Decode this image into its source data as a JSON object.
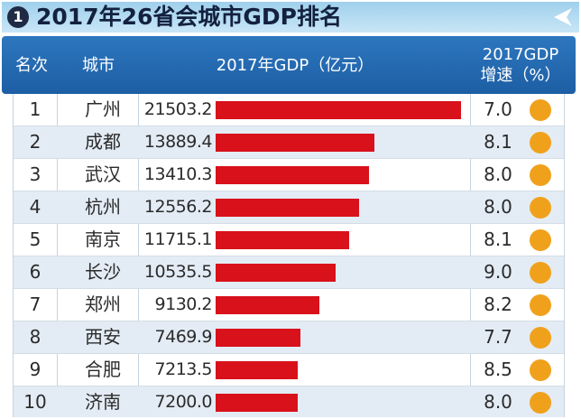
{
  "title": {
    "badge": "1",
    "text": "2017年26省会城市GDP排名"
  },
  "header": {
    "rank": "名次",
    "city": "城市",
    "gdp": "2017年GDP（亿元）",
    "growth_line1": "2017GDP",
    "growth_line2": "增速（%）"
  },
  "colors": {
    "header_bg": "#1d5ea4",
    "bar": "#d8111b",
    "dot": "#f0a11c",
    "title_bg": "#9fd0ec"
  },
  "chart_data": {
    "type": "bar",
    "orientation": "horizontal",
    "title": "2017年26省会城市GDP排名",
    "columns": [
      "名次",
      "城市",
      "2017年GDP（亿元）",
      "2017GDP增速（%）"
    ],
    "categories": [
      "广州",
      "成都",
      "武汉",
      "杭州",
      "南京",
      "长沙",
      "郑州",
      "西安",
      "合肥",
      "济南"
    ],
    "ranks": [
      "1",
      "2",
      "3",
      "4",
      "5",
      "6",
      "7",
      "8",
      "9",
      "10"
    ],
    "values": [
      21503.2,
      13889.4,
      13410.3,
      12556.2,
      11715.1,
      10535.5,
      9130.2,
      7469.9,
      7213.5,
      7200.0
    ],
    "value_labels": [
      "21503.2",
      "13889.4",
      "13410.3",
      "12556.2",
      "11715.1",
      "10535.5",
      "9130.2",
      "7469.9",
      "7213.5",
      "7200.0"
    ],
    "growth": [
      "7.0",
      "8.1",
      "8.0",
      "8.0",
      "8.1",
      "9.0",
      "8.2",
      "7.7",
      "8.5",
      "8.0"
    ],
    "grid": false
  }
}
